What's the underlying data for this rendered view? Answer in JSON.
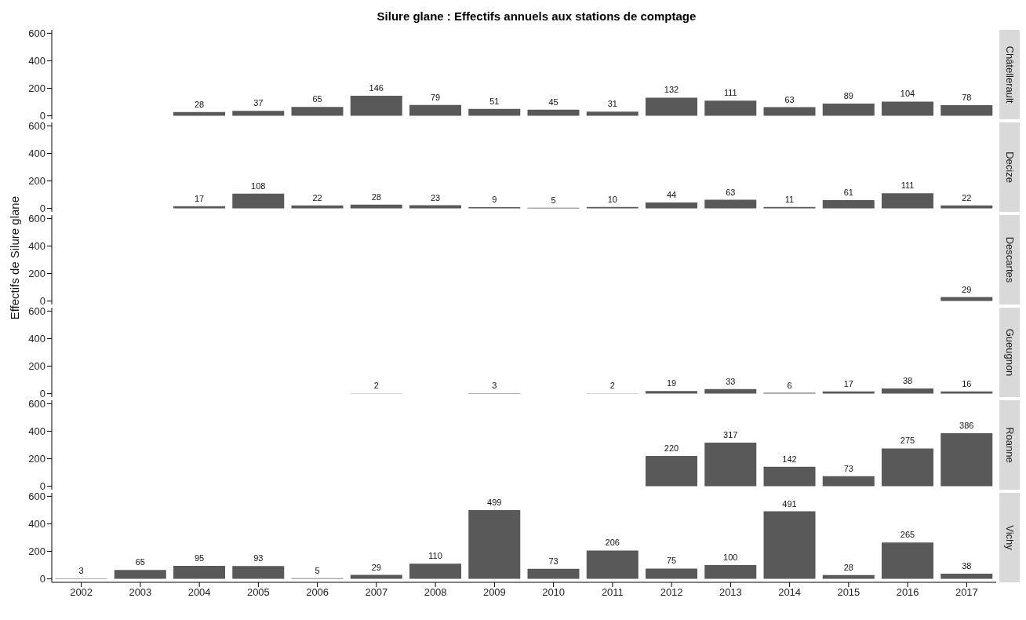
{
  "chart_data": [
    {
      "type": "bar",
      "title": "Silure glane : Effectifs annuels aux stations de comptage",
      "categories": [
        "2002",
        "2003",
        "2004",
        "2005",
        "2006",
        "2007",
        "2008",
        "2009",
        "2010",
        "2011",
        "2012",
        "2013",
        "2014",
        "2015",
        "2016",
        "2017"
      ],
      "series": [
        {
          "name": "Châtellerault",
          "color": "#595959",
          "values": [
            null,
            null,
            28,
            37,
            65,
            146,
            79,
            51,
            45,
            31,
            132,
            111,
            63,
            89,
            104,
            78
          ]
        }
      ],
      "ylim": [
        -25,
        625
      ],
      "yticks": [
        0,
        200,
        400,
        600
      ],
      "data_labels": true,
      "tick_labels": "y"
    },
    {
      "type": "bar",
      "categories": [
        "2002",
        "2003",
        "2004",
        "2005",
        "2006",
        "2007",
        "2008",
        "2009",
        "2010",
        "2011",
        "2012",
        "2013",
        "2014",
        "2015",
        "2016",
        "2017"
      ],
      "series": [
        {
          "name": "Decize",
          "color": "#595959",
          "values": [
            null,
            null,
            17,
            108,
            22,
            28,
            23,
            9,
            5,
            10,
            44,
            63,
            11,
            61,
            111,
            22
          ]
        }
      ],
      "ylim": [
        -25,
        625
      ],
      "yticks": [
        0,
        200,
        400,
        600
      ],
      "data_labels": true,
      "tick_labels": "y"
    },
    {
      "type": "bar",
      "ylabel": "Effectifs de Silure glane",
      "categories": [
        "2002",
        "2003",
        "2004",
        "2005",
        "2006",
        "2007",
        "2008",
        "2009",
        "2010",
        "2011",
        "2012",
        "2013",
        "2014",
        "2015",
        "2016",
        "2017"
      ],
      "series": [
        {
          "name": "Descartes",
          "color": "#595959",
          "values": [
            null,
            null,
            null,
            null,
            null,
            null,
            null,
            null,
            null,
            null,
            null,
            null,
            null,
            null,
            null,
            29
          ]
        }
      ],
      "ylim": [
        -25,
        625
      ],
      "yticks": [
        0,
        200,
        400,
        600
      ],
      "data_labels": true,
      "tick_labels": "y"
    },
    {
      "type": "bar",
      "categories": [
        "2002",
        "2003",
        "2004",
        "2005",
        "2006",
        "2007",
        "2008",
        "2009",
        "2010",
        "2011",
        "2012",
        "2013",
        "2014",
        "2015",
        "2016",
        "2017"
      ],
      "series": [
        {
          "name": "Gueugnon",
          "color": "#595959",
          "values": [
            null,
            null,
            null,
            null,
            null,
            2,
            null,
            3,
            null,
            2,
            19,
            33,
            6,
            17,
            38,
            16
          ]
        }
      ],
      "ylim": [
        -25,
        625
      ],
      "yticks": [
        0,
        200,
        400,
        600
      ],
      "data_labels": true,
      "tick_labels": "y"
    },
    {
      "type": "bar",
      "categories": [
        "2002",
        "2003",
        "2004",
        "2005",
        "2006",
        "2007",
        "2008",
        "2009",
        "2010",
        "2011",
        "2012",
        "2013",
        "2014",
        "2015",
        "2016",
        "2017"
      ],
      "series": [
        {
          "name": "Roanne",
          "color": "#595959",
          "values": [
            null,
            null,
            null,
            null,
            null,
            null,
            null,
            null,
            null,
            null,
            220,
            317,
            142,
            73,
            275,
            386
          ]
        }
      ],
      "ylim": [
        -25,
        625
      ],
      "yticks": [
        0,
        200,
        400,
        600
      ],
      "data_labels": true,
      "tick_labels": "y"
    },
    {
      "type": "bar",
      "categories": [
        "2002",
        "2003",
        "2004",
        "2005",
        "2006",
        "2007",
        "2008",
        "2009",
        "2010",
        "2011",
        "2012",
        "2013",
        "2014",
        "2015",
        "2016",
        "2017"
      ],
      "series": [
        {
          "name": "Vichy",
          "color": "#595959",
          "values": [
            3,
            65,
            95,
            93,
            5,
            29,
            110,
            499,
            73,
            206,
            75,
            100,
            491,
            28,
            265,
            38
          ]
        }
      ],
      "ylim": [
        -25,
        625
      ],
      "yticks": [
        0,
        200,
        400,
        600
      ],
      "data_labels": true
    }
  ]
}
